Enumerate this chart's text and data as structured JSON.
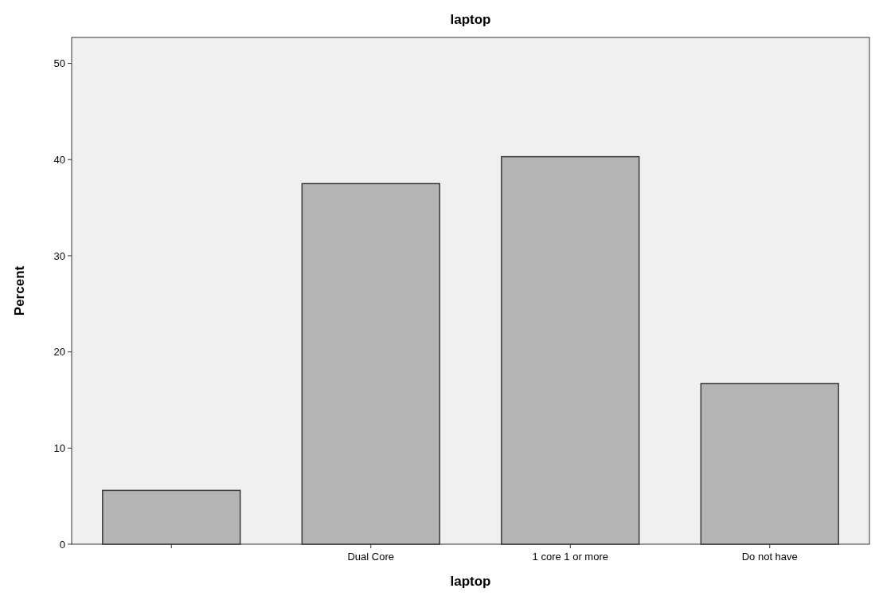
{
  "chart_data": {
    "type": "bar",
    "title": "laptop",
    "xlabel": "laptop",
    "ylabel": "Percent",
    "categories": [
      null,
      "Dual Core",
      "1 core 1 or more",
      "Do not have"
    ],
    "values": [
      5.6,
      37.5,
      40.3,
      16.7
    ],
    "color": "#b4b4b4",
    "ylim": [
      0,
      52.7
    ],
    "yticks": [
      0,
      10,
      20,
      30,
      40,
      50
    ],
    "grid": false
  }
}
